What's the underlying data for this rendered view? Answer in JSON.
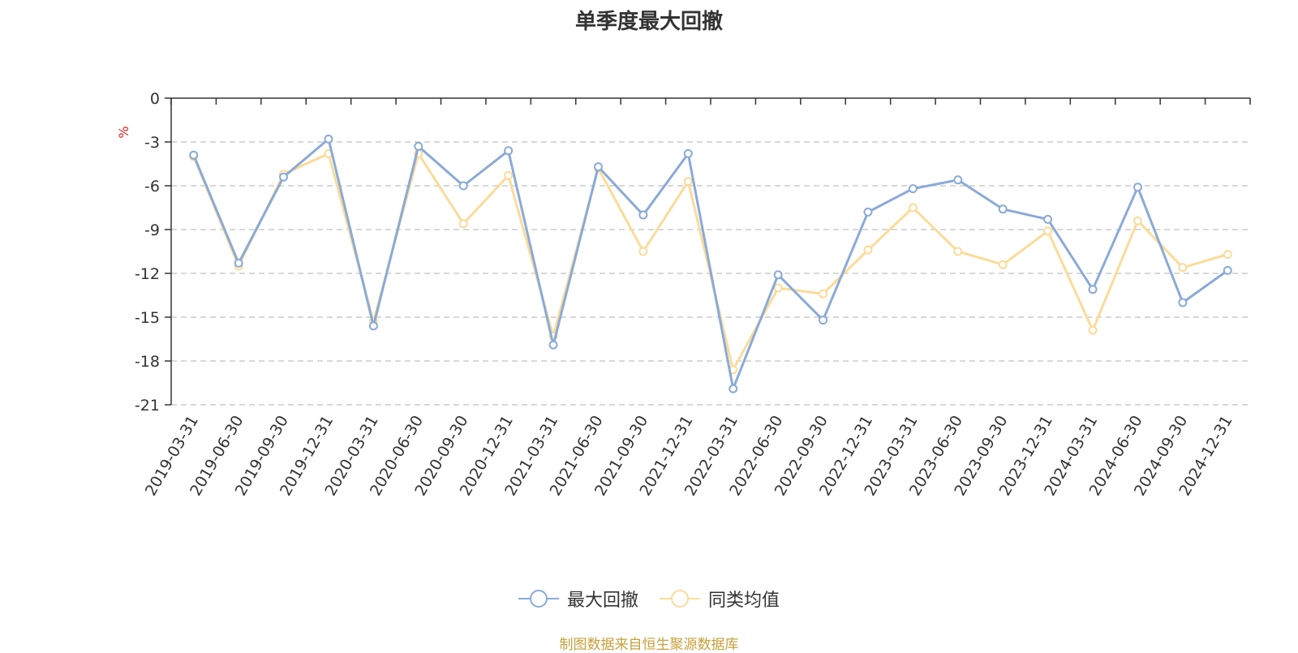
{
  "chart_data": {
    "type": "line",
    "title": "单季度最大回撤",
    "ylabel": "%",
    "ylim": [
      -21,
      0
    ],
    "yticks": [
      0,
      -3,
      -6,
      -9,
      -12,
      -15,
      -18,
      -21
    ],
    "grid": true,
    "legend_position": "bottom-center",
    "categories": [
      "2019-03-31",
      "2019-06-30",
      "2019-09-30",
      "2019-12-31",
      "2020-03-31",
      "2020-06-30",
      "2020-09-30",
      "2020-12-31",
      "2021-03-31",
      "2021-06-30",
      "2021-09-30",
      "2021-12-31",
      "2022-03-31",
      "2022-06-30",
      "2022-09-30",
      "2022-12-31",
      "2023-03-31",
      "2023-06-30",
      "2023-09-30",
      "2023-12-31",
      "2024-03-31",
      "2024-06-30",
      "2024-09-30",
      "2024-12-31"
    ],
    "series": [
      {
        "name": "最大回撤",
        "color": "#8aaad8",
        "values": [
          -3.9,
          -11.3,
          -5.4,
          -2.8,
          -15.6,
          -3.3,
          -6.0,
          -3.6,
          -16.9,
          -4.7,
          -8.0,
          -3.8,
          -19.9,
          -12.1,
          -15.2,
          -7.8,
          -6.2,
          -5.6,
          -7.6,
          -8.3,
          -13.1,
          -6.1,
          -14.0,
          -11.8
        ]
      },
      {
        "name": "同类均值",
        "color": "#fcdb99",
        "values": [
          -4.0,
          -11.5,
          -5.2,
          -3.8,
          -15.3,
          -3.8,
          -8.6,
          -5.3,
          -16.3,
          -4.8,
          -10.5,
          -5.7,
          -18.6,
          -13.0,
          -13.4,
          -10.4,
          -7.5,
          -10.5,
          -11.4,
          -9.1,
          -15.9,
          -8.4,
          -11.6,
          -10.7
        ]
      }
    ]
  },
  "footer": {
    "source_text": "制图数据来自恒生聚源数据库",
    "source_color": "#c8a03c"
  },
  "colors": {
    "axis": "#333333",
    "grid": "#cccccc",
    "unit": "#e02020"
  }
}
